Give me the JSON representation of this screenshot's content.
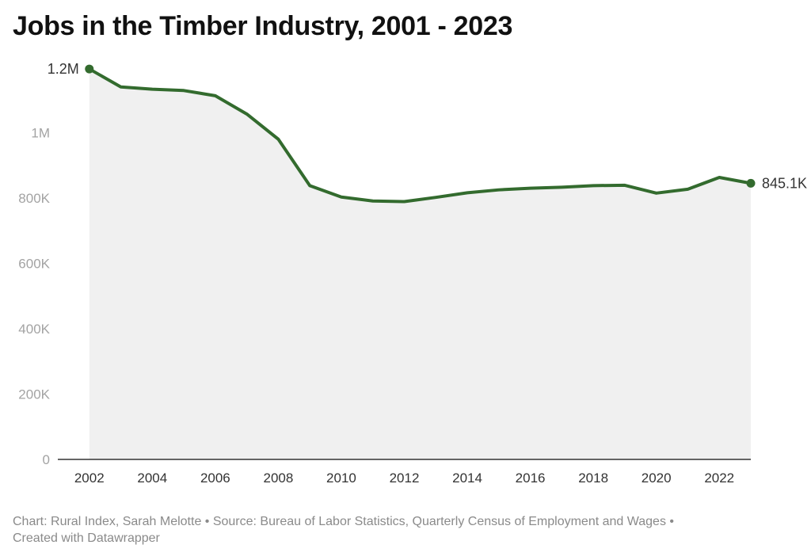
{
  "title": "Jobs in the Timber Industry, 2001 - 2023",
  "footer": {
    "line1": "Chart: Rural Index, Sarah Melotte • Source: Bureau of Labor Statistics, Quarterly Census of Employment and Wages •",
    "line2": "Created with Datawrapper"
  },
  "colors": {
    "line": "#336b2e",
    "area": "#f0f0f0",
    "tick_text": "#a3a3a3",
    "label_text": "#333333",
    "baseline": "#333333"
  },
  "chart_data": {
    "type": "area",
    "title": "Jobs in the Timber Industry, 2001 - 2023",
    "xlabel": "",
    "ylabel": "",
    "x": [
      2002,
      2003,
      2004,
      2005,
      2006,
      2007,
      2008,
      2009,
      2010,
      2011,
      2012,
      2013,
      2014,
      2015,
      2016,
      2017,
      2018,
      2019,
      2020,
      2021,
      2022,
      2023
    ],
    "series": [
      {
        "name": "",
        "values": [
          1195000,
          1140000,
          1133000,
          1129000,
          1113000,
          1057000,
          980000,
          838000,
          803000,
          791000,
          789000,
          802000,
          816000,
          825000,
          830000,
          833000,
          838000,
          839000,
          815000,
          827000,
          863000,
          845100
        ]
      }
    ],
    "ylim": [
      0,
      1200000
    ],
    "xlim": [
      2001,
      2023
    ],
    "y_ticks": [
      0,
      200000,
      400000,
      600000,
      800000,
      1000000
    ],
    "y_tick_labels": [
      "0",
      "200K",
      "400K",
      "600K",
      "800K",
      "1M"
    ],
    "x_ticks": [
      2002,
      2004,
      2006,
      2008,
      2010,
      2012,
      2014,
      2016,
      2018,
      2020,
      2022
    ],
    "x_tick_labels": [
      "2002",
      "2004",
      "2006",
      "2008",
      "2010",
      "2012",
      "2014",
      "2016",
      "2018",
      "2020",
      "2022"
    ],
    "annotations": [
      {
        "x": 2002,
        "value": 1195000,
        "text": "1.2M",
        "side": "left"
      },
      {
        "x": 2023,
        "value": 845100,
        "text": "845.1K",
        "side": "right"
      }
    ],
    "grid": false,
    "legend": "none"
  }
}
